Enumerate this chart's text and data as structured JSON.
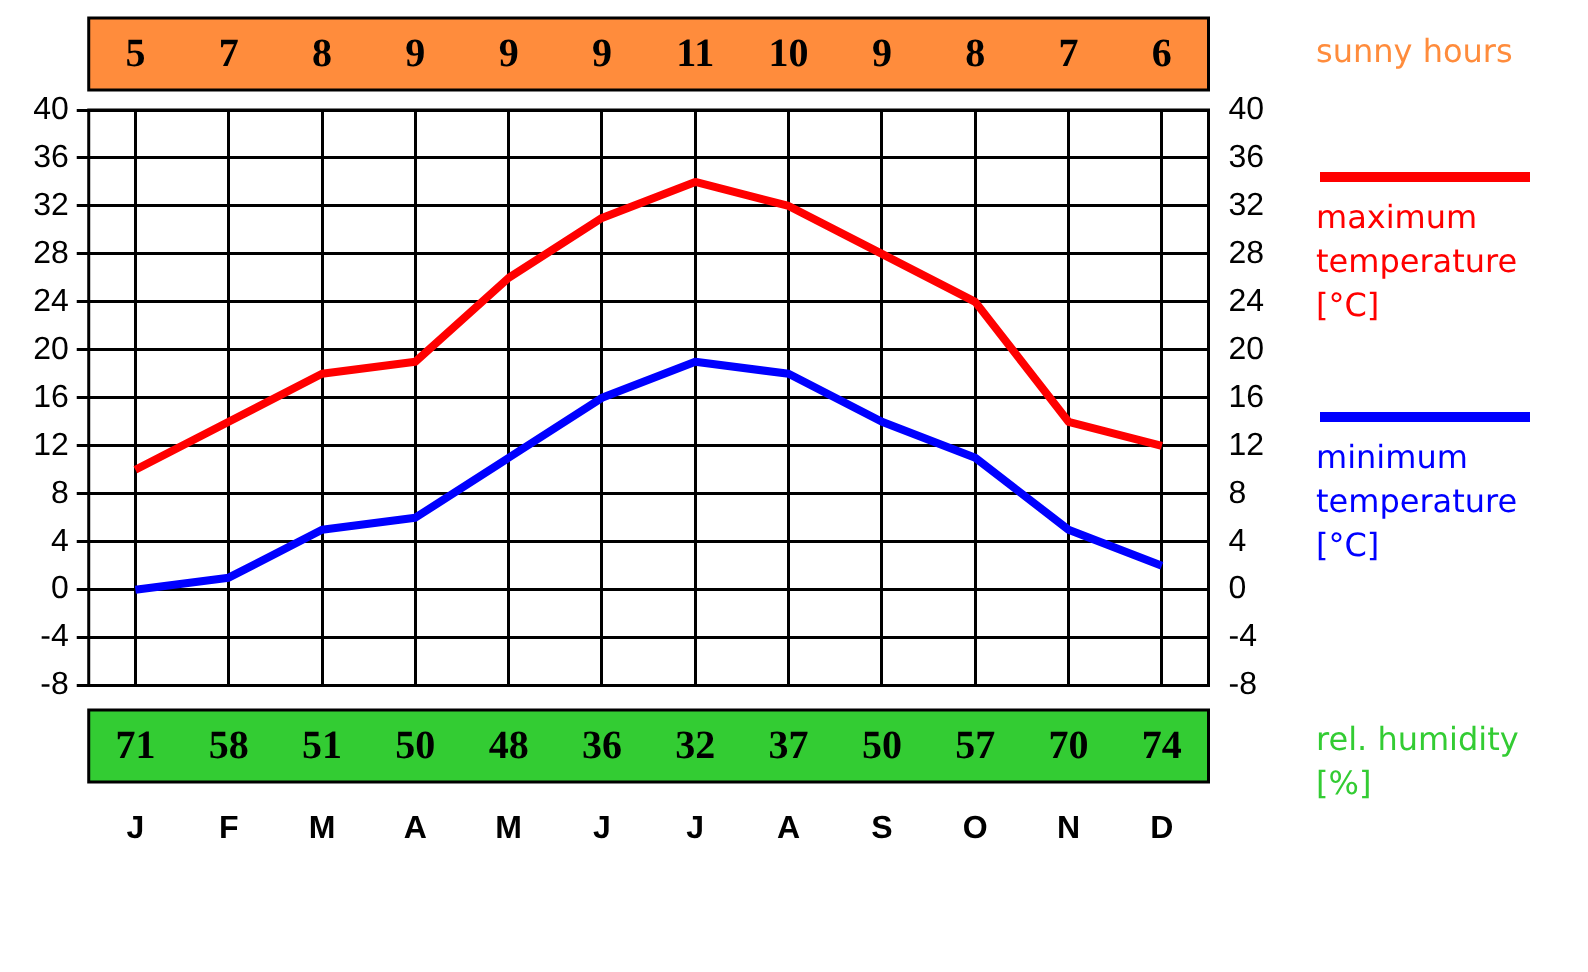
{
  "chart_data": [
    {
      "type": "other",
      "title": "sunny hours",
      "data_labels": true,
      "color": "#ff8c3c",
      "values": [
        5,
        7,
        8,
        9,
        9,
        9,
        11,
        10,
        9,
        8,
        7,
        6
      ]
    },
    {
      "type": "line",
      "categories": [
        "J",
        "F",
        "M",
        "A",
        "M",
        "J",
        "J",
        "A",
        "S",
        "O",
        "N",
        "D"
      ],
      "ylim": [
        -8,
        40
      ],
      "yticks": [
        -8,
        -4,
        0,
        4,
        8,
        12,
        16,
        20,
        24,
        28,
        32,
        36,
        40
      ],
      "y2lim": [
        -8,
        40
      ],
      "y2ticks": [
        -8,
        -4,
        0,
        4,
        8,
        12,
        16,
        20,
        24,
        28,
        32,
        36,
        40
      ],
      "grid": true,
      "legend": "right",
      "marker": "none",
      "line_style": "solid",
      "series": [
        {
          "name": "maximum temperature [°C]",
          "color": "#ff0000",
          "values": [
            10,
            14,
            18,
            19,
            26,
            31,
            34,
            32,
            28,
            24,
            14,
            12
          ]
        },
        {
          "name": "minimum temperature [°C]",
          "color": "#0000ff",
          "values": [
            0,
            1,
            5,
            6,
            11,
            16,
            19,
            18,
            14,
            11,
            5,
            2
          ]
        }
      ]
    },
    {
      "type": "other",
      "title": "rel. humidity [%]",
      "data_labels": true,
      "color": "#33cc33",
      "values": [
        71,
        58,
        51,
        50,
        48,
        36,
        32,
        37,
        50,
        57,
        70,
        74
      ]
    }
  ]
}
